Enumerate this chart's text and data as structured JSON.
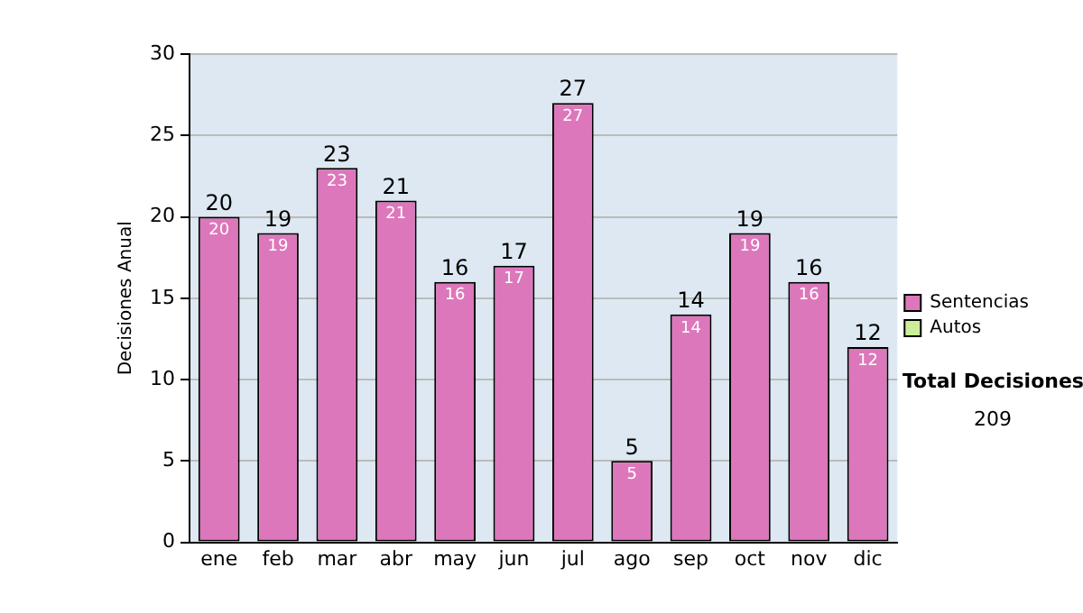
{
  "chart_data": {
    "type": "bar",
    "stacked": true,
    "ylabel": "Decisiones Anual",
    "categories": [
      "ene",
      "feb",
      "mar",
      "abr",
      "may",
      "jun",
      "jul",
      "ago",
      "sep",
      "oct",
      "nov",
      "dic"
    ],
    "series": [
      {
        "name": "Sentencias",
        "color": "#dd77bb",
        "values": [
          20,
          19,
          23,
          21,
          16,
          17,
          27,
          5,
          14,
          19,
          16,
          12
        ],
        "value_labels": [
          "20",
          "19",
          "23",
          "21",
          "16",
          "17",
          "27",
          "5",
          "14",
          "19",
          "16",
          "12"
        ]
      },
      {
        "name": "Autos",
        "color": "#ccee99",
        "values": [
          0,
          0,
          0,
          0,
          0,
          0,
          0,
          0,
          0,
          0,
          0,
          0
        ]
      }
    ],
    "totals": [
      "20",
      "19",
      "23",
      "21",
      "16",
      "17",
      "27",
      "5",
      "14",
      "19",
      "16",
      "12"
    ],
    "ylim": [
      0,
      30
    ],
    "yticks": [
      0,
      5,
      10,
      15,
      20,
      25,
      30
    ],
    "grid": "y",
    "legend": "right",
    "annotations": [
      "Total Decisiones",
      "209"
    ]
  }
}
